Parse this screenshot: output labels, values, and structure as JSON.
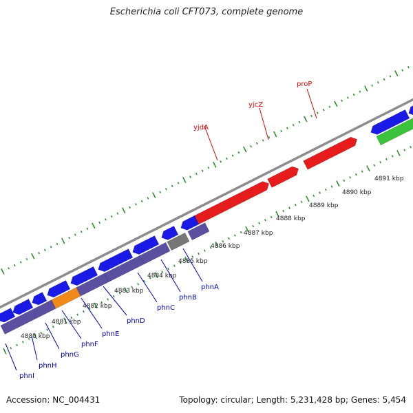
{
  "title": "Escherichia coli CFT073, complete genome",
  "footer": {
    "accession": "Accession: NC_004431",
    "summary": "Topology: circular; Length: 5,231,428 bp; Genes: 5,454"
  },
  "colors": {
    "forward_gene": "#e61c1c",
    "reverse_cds": "#1a1ae6",
    "reverse_feature": "#5a4fa0",
    "rna": "#f28a1a",
    "gray_feature": "#777777",
    "green_feature": "#3cc23c",
    "backbone": "#8c8c8c",
    "ticks": "#2e8b2e",
    "forward_label": "#e00000",
    "reverse_label": "#0000cc"
  },
  "scale": {
    "ticks": [
      {
        "label": "4880 kbp"
      },
      {
        "label": "4881 kbp"
      },
      {
        "label": "4882 kbp"
      },
      {
        "label": "4883 kbp"
      },
      {
        "label": "4884 kbp"
      },
      {
        "label": "4885 kbp"
      },
      {
        "label": "4886 kbp"
      },
      {
        "label": "4887 kbp"
      },
      {
        "label": "4888 kbp"
      },
      {
        "label": "4889 kbp"
      },
      {
        "label": "4890 kbp"
      },
      {
        "label": "4891 kbp"
      }
    ]
  },
  "forward_genes": [
    {
      "label": "yjdA"
    },
    {
      "label": "yjcZ"
    },
    {
      "label": "proP"
    }
  ],
  "reverse_genes": [
    {
      "label": "phnI"
    },
    {
      "label": "phnH"
    },
    {
      "label": "phnG"
    },
    {
      "label": "phnF"
    },
    {
      "label": "phnE"
    },
    {
      "label": "phnD"
    },
    {
      "label": "phnC"
    },
    {
      "label": "phnB"
    },
    {
      "label": "phnA"
    }
  ]
}
